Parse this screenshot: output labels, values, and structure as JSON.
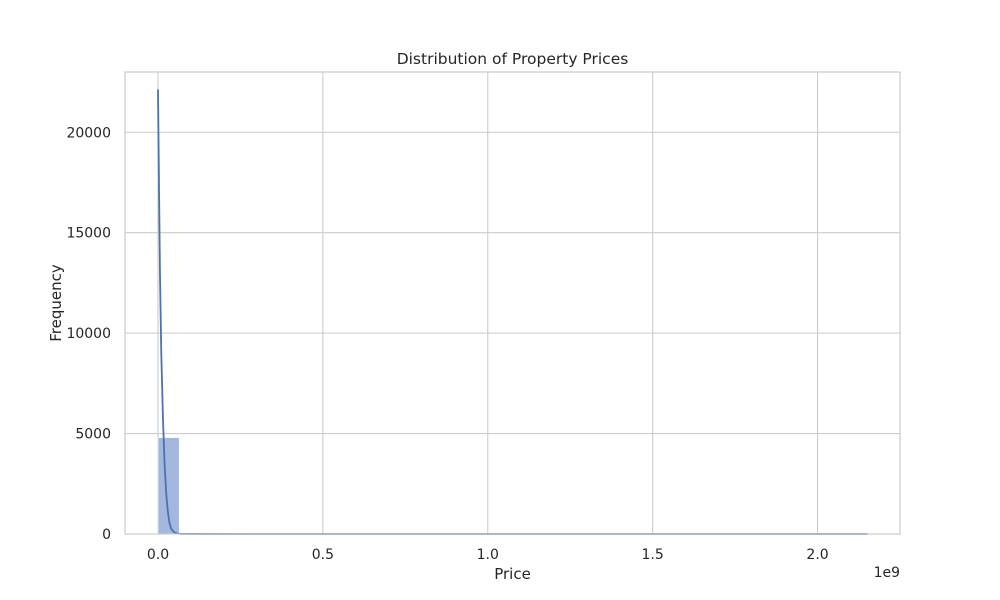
{
  "chart_data": {
    "type": "bar",
    "title": "Distribution of Property Prices",
    "xlabel": "Price",
    "ylabel": "Frequency",
    "x_offset_label": "1e9",
    "xlim": [
      -0.1,
      2.25
    ],
    "ylim": [
      0,
      23000
    ],
    "x_ticks": [
      0.0,
      0.5,
      1.0,
      1.5,
      2.0
    ],
    "x_tick_labels": [
      "0.0",
      "0.5",
      "1.0",
      "1.5",
      "2.0"
    ],
    "y_ticks": [
      0,
      5000,
      10000,
      15000,
      20000
    ],
    "y_tick_labels": [
      "0",
      "5000",
      "10000",
      "15000",
      "20000"
    ],
    "grid": true,
    "bins": [
      {
        "x0": 0.0,
        "x1": 0.0645,
        "count": 4800
      },
      {
        "x0": 0.0645,
        "x1": 0.129,
        "count": 18
      },
      {
        "x0": 0.129,
        "x1": 0.1935,
        "count": 6
      },
      {
        "x0": 0.1935,
        "x1": 0.258,
        "count": 3
      },
      {
        "x0": 0.258,
        "x1": 1.29,
        "count": 1
      },
      {
        "x0": 1.29,
        "x1": 2.15,
        "count": 1
      }
    ],
    "kde": {
      "x": [
        0.0,
        0.003,
        0.006,
        0.01,
        0.015,
        0.02,
        0.025,
        0.03,
        0.035,
        0.04,
        0.05,
        0.06,
        0.07,
        0.1,
        0.5,
        1.0,
        1.5,
        2.0,
        2.15
      ],
      "y": [
        22100,
        17500,
        13000,
        9000,
        5800,
        3500,
        2000,
        1100,
        550,
        260,
        70,
        20,
        8,
        2,
        0,
        0,
        0,
        0,
        0
      ]
    },
    "colors": {
      "bar_fill": "#a4b7dc",
      "bar_stroke": "#ffffff",
      "kde_line": "#4c72b0",
      "grid": "#cccccc",
      "spine": "#cccccc",
      "text": "#262626"
    }
  }
}
